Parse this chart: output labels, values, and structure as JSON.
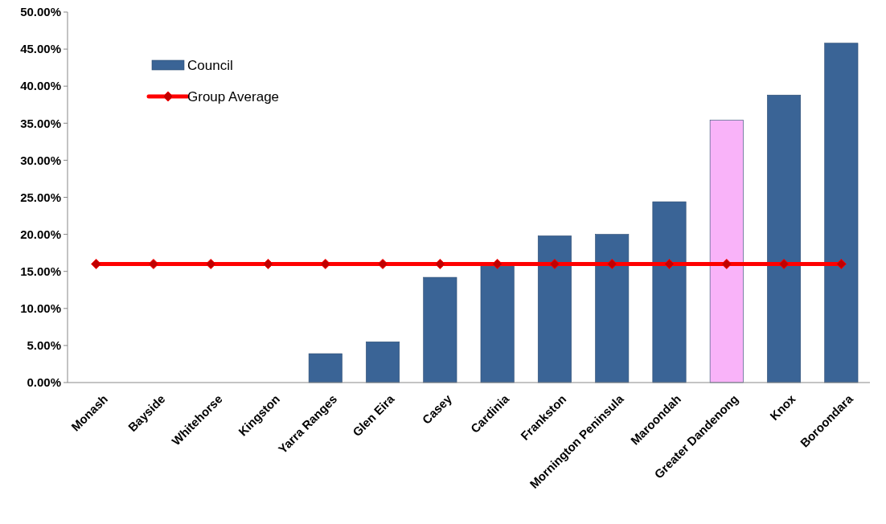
{
  "chart_data": {
    "type": "bar",
    "categories": [
      "Monash",
      "Bayside",
      "Whitehorse",
      "Kingston",
      "Yarra Ranges",
      "Glen Eira",
      "Casey",
      "Cardinia",
      "Frankston",
      "Mornington Peninsula",
      "Maroondah",
      "Greater Dandenong",
      "Knox",
      "Boroondara"
    ],
    "series": [
      {
        "name": "Council",
        "color": "#3a6496",
        "colors": [
          "#3a6496",
          "#3a6496",
          "#3a6496",
          "#3a6496",
          "#3a6496",
          "#3a6496",
          "#3a6496",
          "#3a6496",
          "#3a6496",
          "#3a6496",
          "#3a6496",
          "#f9b3f9",
          "#3a6496",
          "#3a6496"
        ],
        "values": [
          0,
          0,
          0,
          0,
          3.9,
          5.5,
          14.2,
          15.7,
          19.8,
          20.0,
          24.4,
          35.4,
          38.8,
          45.8
        ]
      },
      {
        "name": "Group Average",
        "type": "line",
        "color": "#ff0000",
        "marker": "diamond",
        "values": [
          16,
          16,
          16,
          16,
          16,
          16,
          16,
          16,
          16,
          16,
          16,
          16,
          16,
          16
        ]
      }
    ],
    "ylim": [
      0,
      50
    ],
    "yticks": [
      {
        "value": 0,
        "label": "0.00%"
      },
      {
        "value": 5,
        "label": "5.00%"
      },
      {
        "value": 10,
        "label": "10.00%"
      },
      {
        "value": 15,
        "label": "15.00%"
      },
      {
        "value": 20,
        "label": "20.00%"
      },
      {
        "value": 25,
        "label": "25.00%"
      },
      {
        "value": 30,
        "label": "30.00%"
      },
      {
        "value": 35,
        "label": "35.00%"
      },
      {
        "value": 40,
        "label": "40.00%"
      },
      {
        "value": 45,
        "label": "45.00%"
      },
      {
        "value": 50,
        "label": "50.00%"
      }
    ],
    "legend": "top left",
    "grid": false
  }
}
